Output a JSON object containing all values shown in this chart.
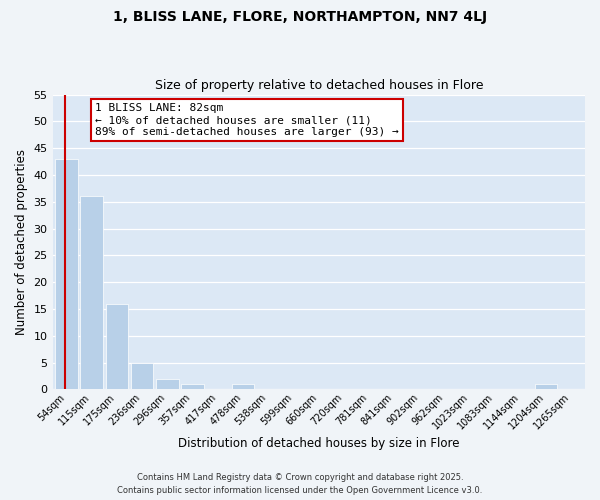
{
  "title": "1, BLISS LANE, FLORE, NORTHAMPTON, NN7 4LJ",
  "subtitle": "Size of property relative to detached houses in Flore",
  "xlabel": "Distribution of detached houses by size in Flore",
  "ylabel": "Number of detached properties",
  "bin_labels": [
    "54sqm",
    "115sqm",
    "175sqm",
    "236sqm",
    "296sqm",
    "357sqm",
    "417sqm",
    "478sqm",
    "538sqm",
    "599sqm",
    "660sqm",
    "720sqm",
    "781sqm",
    "841sqm",
    "902sqm",
    "962sqm",
    "1023sqm",
    "1083sqm",
    "1144sqm",
    "1204sqm",
    "1265sqm"
  ],
  "bar_values": [
    43,
    36,
    16,
    5,
    2,
    1,
    0,
    1,
    0,
    0,
    0,
    0,
    0,
    0,
    0,
    0,
    0,
    0,
    0,
    1,
    0
  ],
  "bar_color": "#b8d0e8",
  "annotation_title": "1 BLISS LANE: 82sqm",
  "annotation_line1": "← 10% of detached houses are smaller (11)",
  "annotation_line2": "89% of semi-detached houses are larger (93) →",
  "annotation_box_color": "#ffffff",
  "annotation_box_edge": "#cc0000",
  "vline_color": "#cc0000",
  "ylim": [
    0,
    55
  ],
  "yticks": [
    0,
    5,
    10,
    15,
    20,
    25,
    30,
    35,
    40,
    45,
    50,
    55
  ],
  "bg_color": "#dce8f5",
  "fig_color": "#f0f4f8",
  "footer_line1": "Contains HM Land Registry data © Crown copyright and database right 2025.",
  "footer_line2": "Contains public sector information licensed under the Open Government Licence v3.0."
}
